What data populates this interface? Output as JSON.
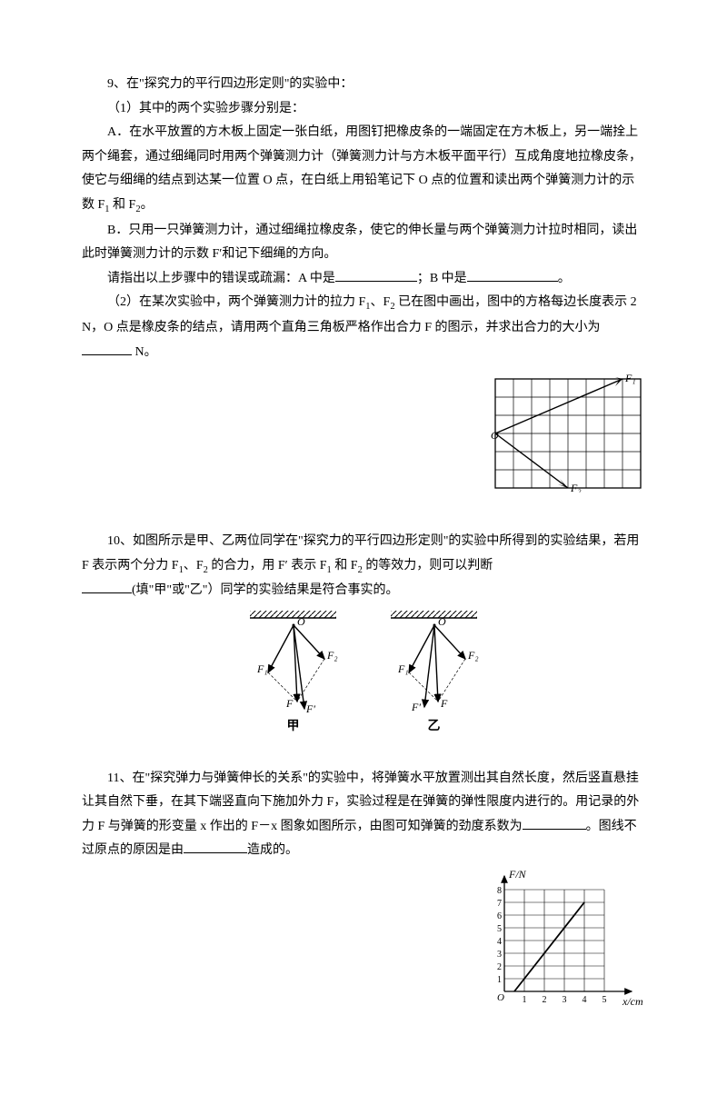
{
  "q9": {
    "num": "9、在\"探究力的平行四边形定则\"的实验中：",
    "p1": "（1）其中的两个实验步骤分别是：",
    "pA": "A．在水平放置的方木板上固定一张白纸，用图钉把橡皮条的一端固定在方木板上，另一端拴上两个绳套，通过细绳同时用两个弹簧测力计（弹簧测力计与方木板平面平行）互成角度地拉橡皮条，使它与细绳的结点到达某一位置 O 点，在白纸上用铅笔记下 O 点的位置和读出两个弹簧测力计的示数 F",
    "pA_tail": " 和 F",
    "pA_end": "。",
    "pB": "B．只用一只弹簧测力计，通过细绳拉橡皮条，使它的伸长量与两个弹簧测力计拉时相同，读出此时弹簧测力计的示数 F′和记下细绳的方向。",
    "pQ": "请指出以上步骤中的错误或疏漏：A 中是",
    "pQ_mid": "；B 中是",
    "pQ_end": "。",
    "p2a": "（2）在某次实验中，两个弹簧测力计的拉力 F",
    "p2b": "、F",
    "p2c": " 已在图中画出，图中的方格每边长度表示 2   N，O 点是橡皮条的结点，请用两个直角三角板严格作出合力 F 的图示，并求出合力的大小为",
    "p2d": " N。",
    "sub1": "1",
    "sub2": "2",
    "labelF1": "F₁",
    "labelF2": "F₂",
    "labelO": "O"
  },
  "q10": {
    "txt1": "10、如图所示是甲、乙两位同学在\"探究力的平行四边形定则\"的实验中所得到的实验结果，若用 F 表示两个分力 F",
    "txt2": "、F",
    "txt3": " 的合力，用 F′ 表示 F",
    "txt4": " 和 F",
    "txt5": " 的等效力，则可以判断",
    "txt6": "(填\"甲\"或\"乙\"）同学的实验结果是符合事实的。",
    "sub1": "1",
    "sub2": "2",
    "cap1": "甲",
    "cap2": "乙",
    "lblO": "O",
    "lblF": "F",
    "lblFp": "F′",
    "lblF1": "F₁",
    "lblF2": "F₂"
  },
  "q11": {
    "txt1": "11、在\"探究弹力与弹簧伸长的关系\"的实验中，将弹簧水平放置测出其自然长度，然后竖直悬挂让其自然下垂，在其下端竖直向下施加外力 F，实验过程是在弹簧的弹性限度内进行的。用记录的外力 F 与弹簧的形变量 x 作出的 F－x 图象如图所示，由图可知弹簧的劲度系数为",
    "txt2": "。图线不过原点的原因是由",
    "txt3": "造成的。",
    "ylabel": "F/N",
    "xlabel": "x/cm",
    "yticks": [
      "1",
      "2",
      "3",
      "4",
      "5",
      "6",
      "7",
      "8"
    ],
    "xticks": [
      "1",
      "2",
      "3",
      "4",
      "5"
    ],
    "origin": "O",
    "line": {
      "x1": 0.5,
      "y1": 0,
      "x2": 4,
      "y2": 7
    },
    "grid": {
      "nx": 5,
      "ny": 8
    }
  },
  "style": {
    "blankShort": 70,
    "blankMed": 90,
    "blankTiny": 55
  }
}
